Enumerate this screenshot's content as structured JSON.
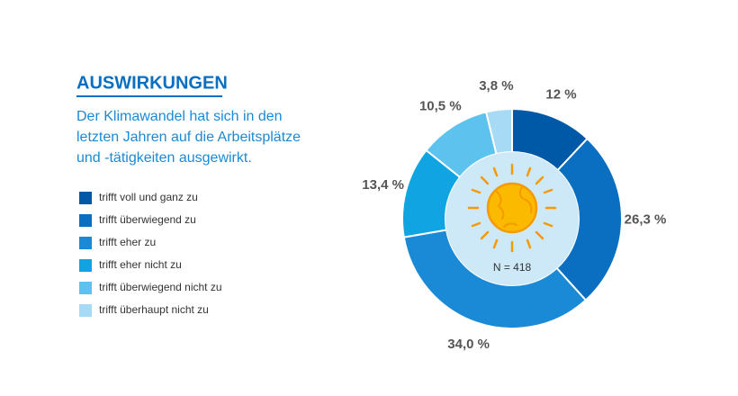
{
  "chart_data": {
    "type": "donut",
    "title": "AUSWIRKUNGEN",
    "subtitle": [
      "Der Klimawandel hat sich in den",
      "letzten Jahren auf die Arbeitsplätze",
      "und -tätigkeiten ausgewirkt."
    ],
    "center_label": "N = 418",
    "series": [
      {
        "name": "trifft voll und ganz zu",
        "color": "#0059a6"
      },
      {
        "name": "trifft überwiegend zu",
        "color": "#0a6fc0"
      },
      {
        "name": "trifft eher zu",
        "color": "#1b8ad6"
      },
      {
        "name": "trifft eher nicht zu",
        "color": "#10a5e2"
      },
      {
        "name": "trifft überwiegend nicht zu",
        "color": "#5dc3ee"
      },
      {
        "name": "trifft überhaupt nicht zu",
        "color": "#a6daf5"
      }
    ],
    "values": [
      12,
      26.3,
      34.0,
      13.4,
      10.5,
      3.8
    ],
    "value_labels": [
      "12 %",
      "26,3 %",
      "34,0 %",
      "13,4 %",
      "10,5 %",
      "3,8 %"
    ]
  }
}
